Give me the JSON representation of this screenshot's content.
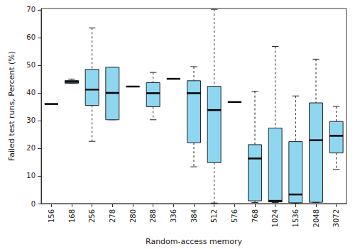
{
  "chart_data": {
    "type": "boxplot",
    "x_label": "Random-access memory",
    "y_label": "Failed test runs, Percent (%)",
    "categories": [
      "156",
      "168",
      "256",
      "278",
      "280",
      "288",
      "336",
      "384",
      "512",
      "576",
      "768",
      "1024",
      "1536",
      "2048",
      "3072"
    ],
    "values": [
      {
        "min": 36,
        "q1": 36,
        "median": 36,
        "q3": 36,
        "max": 36
      },
      {
        "min": 43.5,
        "q1": 43.5,
        "median": 44,
        "q3": 44.5,
        "max": 45
      },
      {
        "min": 22.5,
        "q1": 35.5,
        "median": 41.2,
        "q3": 48.5,
        "max": 63.5
      },
      {
        "min": 30.3,
        "q1": 30.3,
        "median": 40,
        "q3": 49.3,
        "max": 49.3
      },
      {
        "min": 42.3,
        "q1": 42.3,
        "median": 42.3,
        "q3": 42.3,
        "max": 42.3
      },
      {
        "min": 30.3,
        "q1": 35,
        "median": 39.9,
        "q3": 43.7,
        "max": 47.4
      },
      {
        "min": 45.1,
        "q1": 45.1,
        "median": 45.1,
        "q3": 45.1,
        "max": 45.1
      },
      {
        "min": 13.3,
        "q1": 22,
        "median": 39.9,
        "q3": 44.4,
        "max": 49.5
      },
      {
        "min": 0.2,
        "q1": 14.8,
        "median": 33.8,
        "q3": 42.4,
        "max": 70.2
      },
      {
        "min": 36.7,
        "q1": 36.7,
        "median": 36.7,
        "q3": 36.7,
        "max": 36.7
      },
      {
        "min": 0.4,
        "q1": 1,
        "median": 16.3,
        "q3": 21.3,
        "max": 40.6
      },
      {
        "min": 0.4,
        "q1": 0.6,
        "median": 1,
        "q3": 27.3,
        "max": 56.8
      },
      {
        "min": 0,
        "q1": 0.3,
        "median": 3.3,
        "q3": 22.4,
        "max": 38.9
      },
      {
        "min": 0.4,
        "q1": 0.5,
        "median": 22.9,
        "q3": 36.4,
        "max": 52.2
      },
      {
        "min": 12.4,
        "q1": 18.3,
        "median": 24.5,
        "q3": 29.7,
        "max": 35.1
      }
    ],
    "color": "#8fd6f0",
    "ylim": [
      0,
      70.5
    ],
    "yticks": [
      0,
      10,
      20,
      30,
      40,
      50,
      60,
      70
    ],
    "grid": false
  }
}
